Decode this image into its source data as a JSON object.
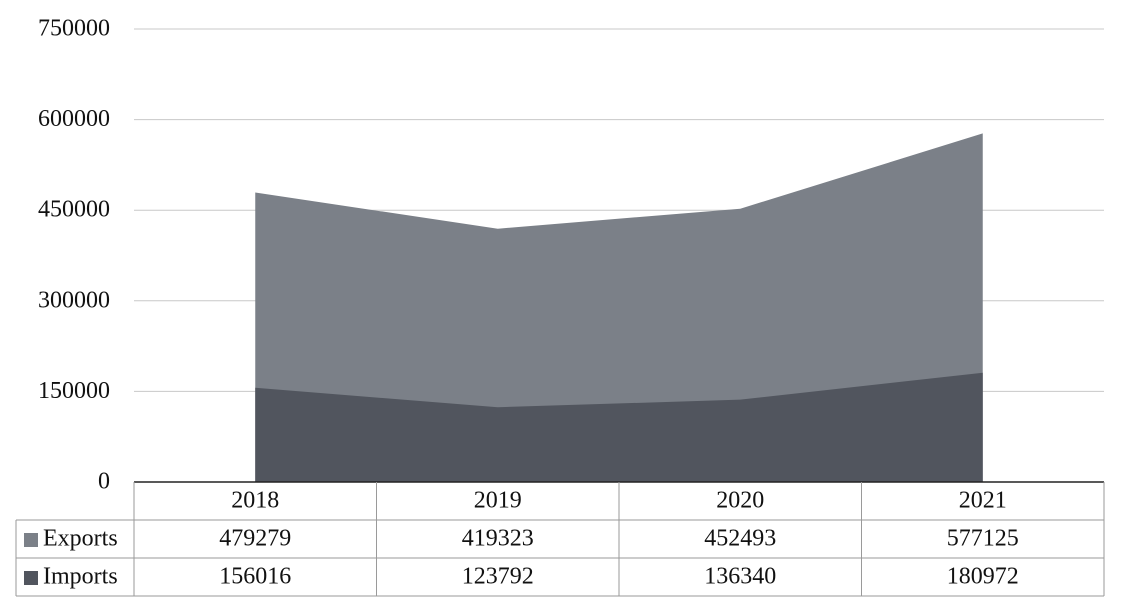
{
  "chart_data": {
    "type": "area",
    "stacked": false,
    "categories": [
      "2018",
      "2019",
      "2020",
      "2021"
    ],
    "series": [
      {
        "name": "Exports",
        "values": [
          479279,
          419323,
          452493,
          577125
        ],
        "color": "#7b8088"
      },
      {
        "name": "Imports",
        "values": [
          156016,
          123792,
          136340,
          180972
        ],
        "color": "#51555e"
      }
    ],
    "ylim": [
      0,
      750000
    ],
    "yticks": [
      "0",
      "150000",
      "300000",
      "450000",
      "600000",
      "750000"
    ],
    "grid": true,
    "legend": "data-table",
    "data_table": {
      "rows": [
        {
          "label": "Exports",
          "cells": [
            "479279",
            "419323",
            "452493",
            "577125"
          ]
        },
        {
          "label": "Imports",
          "cells": [
            "156016",
            "123792",
            "136340",
            "180972"
          ]
        }
      ]
    }
  }
}
